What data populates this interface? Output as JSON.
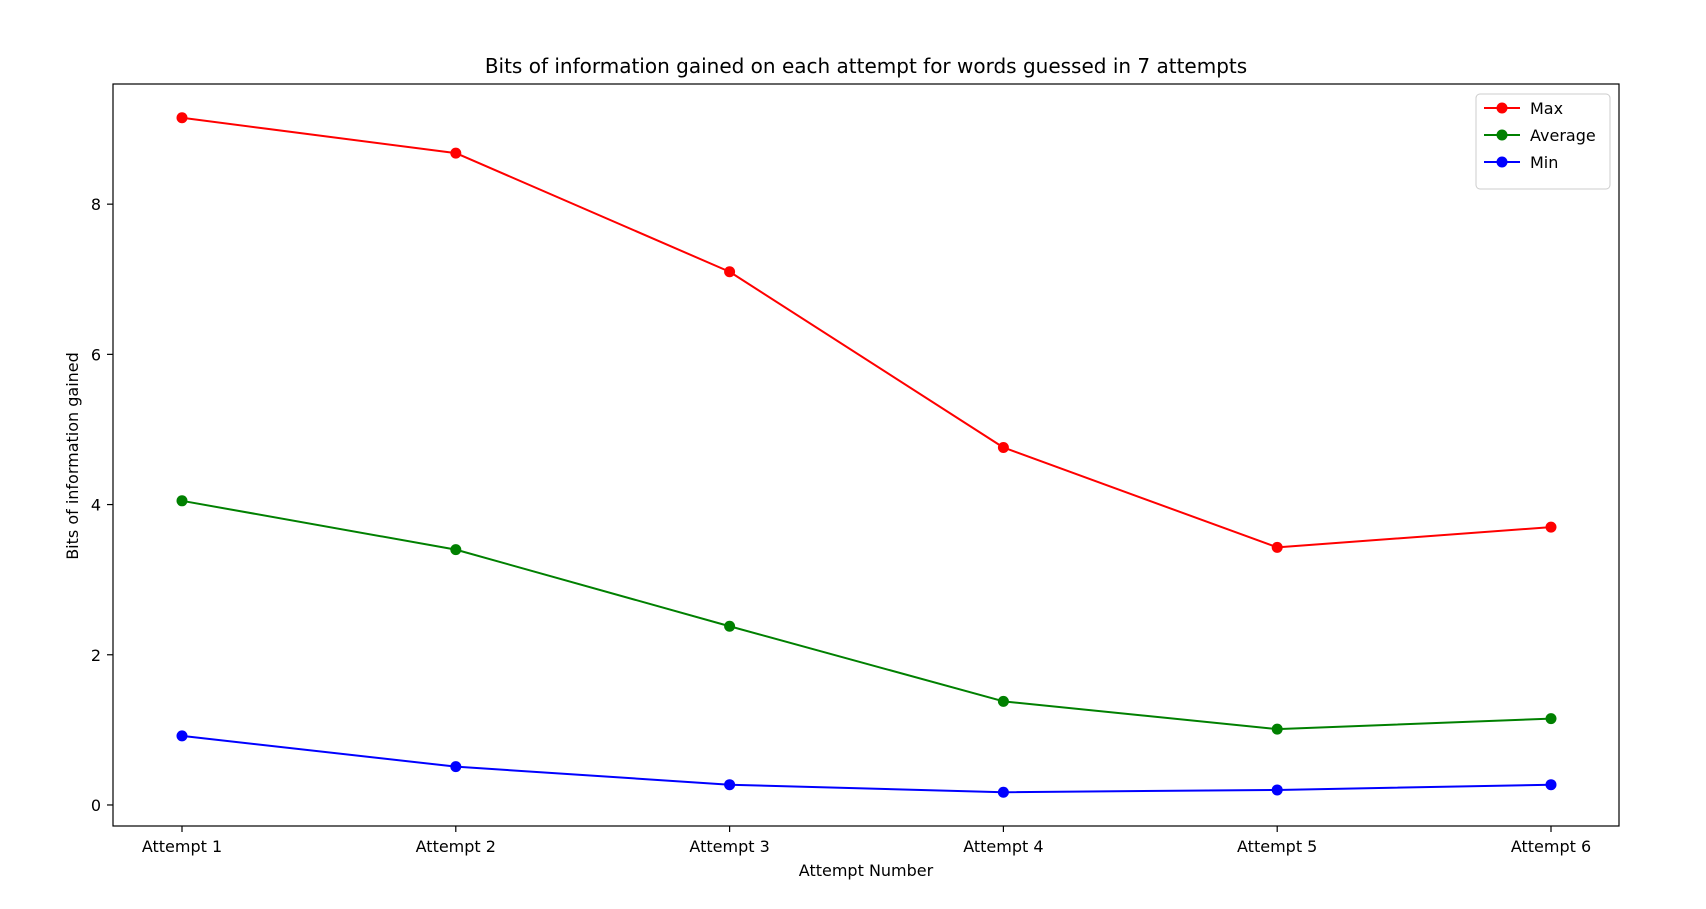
{
  "chart_data": {
    "type": "line",
    "title": "Bits of information gained on each attempt for words guessed in 7 attempts",
    "xlabel": "Attempt Number",
    "ylabel": "Bits of information gained",
    "categories": [
      "Attempt 1",
      "Attempt 2",
      "Attempt 3",
      "Attempt 4",
      "Attempt 5",
      "Attempt 6"
    ],
    "ylim": [
      -0.28,
      9.6
    ],
    "yticks": [
      0,
      2,
      4,
      6,
      8
    ],
    "grid": false,
    "legend_position": "top-right",
    "series": [
      {
        "name": "Max",
        "color": "#ff0000",
        "values": [
          9.15,
          8.68,
          7.1,
          4.76,
          3.43,
          3.7
        ]
      },
      {
        "name": "Average",
        "color": "#008000",
        "values": [
          4.05,
          3.4,
          2.38,
          1.38,
          1.01,
          1.15
        ]
      },
      {
        "name": "Min",
        "color": "#0000ff",
        "values": [
          0.92,
          0.51,
          0.27,
          0.17,
          0.2,
          0.27
        ]
      }
    ]
  }
}
